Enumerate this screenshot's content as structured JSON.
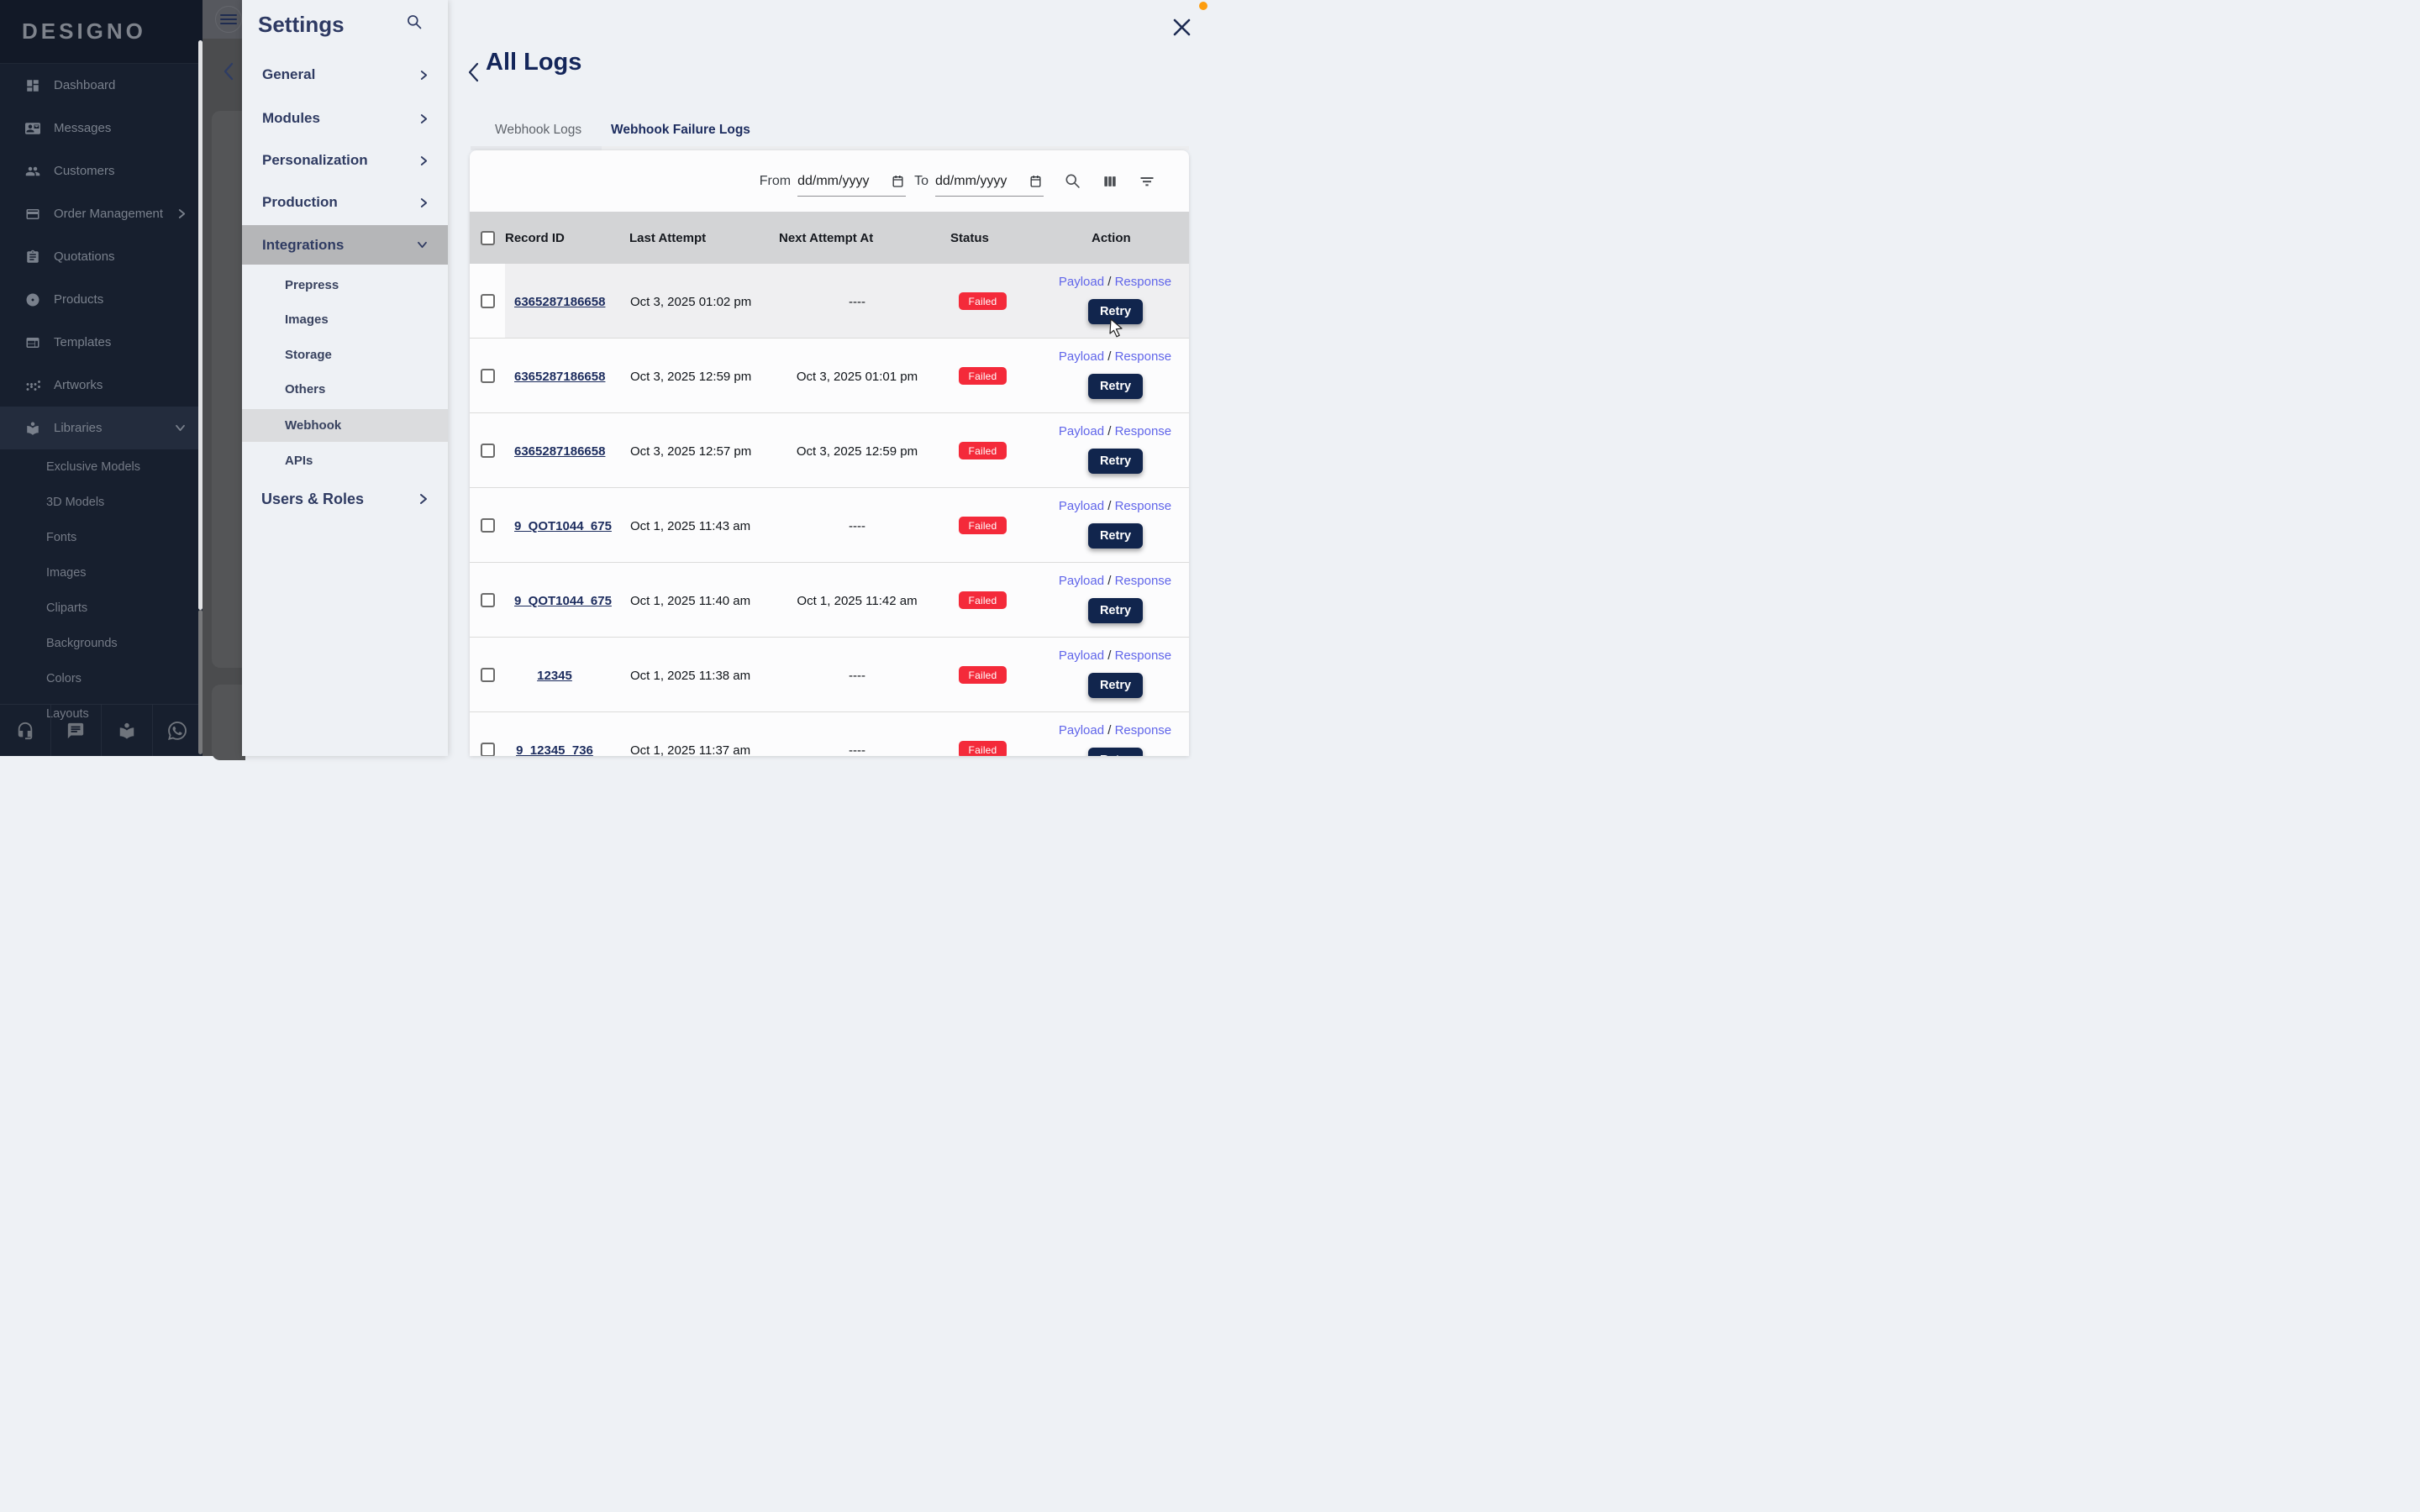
{
  "colors": {
    "accent_navy": "#11254d",
    "failed_red": "#f42a3a",
    "link_indigo": "#6166ea",
    "orange_dot": "#fd9d0e"
  },
  "sidebar": {
    "logo": "DESIGNO",
    "items": [
      {
        "label": "Dashboard",
        "icon": "dashboard-icon",
        "chevron": null
      },
      {
        "label": "Messages",
        "icon": "messages-icon",
        "chevron": null
      },
      {
        "label": "Customers",
        "icon": "customers-icon",
        "chevron": null
      },
      {
        "label": "Order Management",
        "icon": "orders-icon",
        "chevron": "right"
      },
      {
        "label": "Quotations",
        "icon": "quotations-icon",
        "chevron": null
      },
      {
        "label": "Products",
        "icon": "products-icon",
        "chevron": null
      },
      {
        "label": "Templates",
        "icon": "templates-icon",
        "chevron": null
      },
      {
        "label": "Artworks",
        "icon": "artworks-icon",
        "chevron": null
      },
      {
        "label": "Libraries",
        "icon": "libraries-icon",
        "chevron": "down",
        "selected": true
      }
    ],
    "library_sub": [
      "Exclusive Models",
      "3D Models",
      "Fonts",
      "Images",
      "Cliparts",
      "Backgrounds",
      "Colors",
      "Layouts"
    ],
    "bottom_icons": [
      "headset-icon",
      "chat-icon",
      "library-icon",
      "whatsapp-icon"
    ]
  },
  "settings": {
    "title": "Settings",
    "search_icon": "search-icon",
    "items": [
      {
        "label": "General",
        "chevron": "right"
      },
      {
        "label": "Modules",
        "chevron": "right"
      },
      {
        "label": "Personalization",
        "chevron": "right"
      },
      {
        "label": "Production",
        "chevron": "right"
      },
      {
        "label": "Integrations",
        "chevron": "down",
        "selected": true
      }
    ],
    "integration_sub": [
      "Prepress",
      "Images",
      "Storage",
      "Others",
      "Webhook",
      "APIs"
    ],
    "selected_sub": "Webhook",
    "users_roles": {
      "label": "Users & Roles",
      "chevron": "right"
    }
  },
  "logs": {
    "title": "All Logs",
    "tabs": [
      "Webhook Logs",
      "Webhook Failure Logs"
    ],
    "active_tab": "Webhook Failure Logs",
    "filters": {
      "from_label": "From",
      "to_label": "To",
      "from_value": "dd/mm/yyyy",
      "to_value": "dd/mm/yyyy"
    },
    "table": {
      "columns": [
        "Record ID",
        "Last Attempt",
        "Next Attempt At",
        "Status",
        "Action"
      ],
      "action_labels": {
        "payload": "Payload",
        "separator": "/",
        "response": "Response",
        "retry": "Retry"
      },
      "rows": [
        {
          "record_id": "6365287186658",
          "last_attempt": "Oct 3, 2025 01:02 pm",
          "next_attempt": "----",
          "status": "Failed",
          "hovered": true
        },
        {
          "record_id": "6365287186658",
          "last_attempt": "Oct 3, 2025 12:59 pm",
          "next_attempt": "Oct 3, 2025 01:01 pm",
          "status": "Failed"
        },
        {
          "record_id": "6365287186658",
          "last_attempt": "Oct 3, 2025 12:57 pm",
          "next_attempt": "Oct 3, 2025 12:59 pm",
          "status": "Failed"
        },
        {
          "record_id": "9_QOT1044_675",
          "last_attempt": "Oct 1, 2025 11:43 am",
          "next_attempt": "----",
          "status": "Failed"
        },
        {
          "record_id": "9_QOT1044_675",
          "last_attempt": "Oct 1, 2025 11:40 am",
          "next_attempt": "Oct 1, 2025 11:42 am",
          "status": "Failed"
        },
        {
          "record_id": "12345",
          "last_attempt": "Oct 1, 2025 11:38 am",
          "next_attempt": "----",
          "status": "Failed"
        },
        {
          "record_id": "9_12345_736",
          "last_attempt": "Oct 1, 2025 11:37 am",
          "next_attempt": "----",
          "status": "Failed"
        }
      ]
    }
  }
}
